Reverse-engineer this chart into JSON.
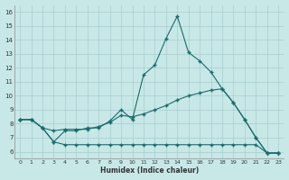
{
  "xlabel": "Humidex (Indice chaleur)",
  "background_color": "#c8e8e8",
  "grid_color": "#a8cccc",
  "line_color": "#1a6b6b",
  "xlim": [
    -0.5,
    23.5
  ],
  "ylim": [
    5.5,
    16.5
  ],
  "xticks": [
    0,
    1,
    2,
    3,
    4,
    5,
    6,
    7,
    8,
    9,
    10,
    11,
    12,
    13,
    14,
    15,
    16,
    17,
    18,
    19,
    20,
    21,
    22,
    23
  ],
  "yticks": [
    6,
    7,
    8,
    9,
    10,
    11,
    12,
    13,
    14,
    15,
    16
  ],
  "top_x": [
    0,
    1,
    2,
    3,
    4,
    5,
    6,
    7,
    8,
    9,
    10,
    11,
    12,
    13,
    14,
    15,
    16,
    17,
    18,
    19,
    20,
    21,
    22,
    23
  ],
  "top_y": [
    8.3,
    8.3,
    7.7,
    6.7,
    7.5,
    7.5,
    7.7,
    7.7,
    8.2,
    9.0,
    8.3,
    11.5,
    12.2,
    14.1,
    15.7,
    13.1,
    12.5,
    11.7,
    10.5,
    9.5,
    8.3,
    7.0,
    5.9,
    5.9
  ],
  "mid_x": [
    0,
    1,
    2,
    3,
    4,
    5,
    6,
    7,
    8,
    9,
    10,
    11,
    12,
    13,
    14,
    15,
    16,
    17,
    18,
    19,
    20,
    21,
    22,
    23
  ],
  "mid_y": [
    8.3,
    8.3,
    7.7,
    7.5,
    7.6,
    7.6,
    7.6,
    7.8,
    8.1,
    8.6,
    8.5,
    8.7,
    9.0,
    9.3,
    9.7,
    10.0,
    10.2,
    10.4,
    10.5,
    9.5,
    8.3,
    7.0,
    5.9,
    5.9
  ],
  "bot_x": [
    0,
    1,
    2,
    3,
    4,
    5,
    6,
    7,
    8,
    9,
    10,
    11,
    12,
    13,
    14,
    15,
    16,
    17,
    18,
    19,
    20,
    21,
    22,
    23
  ],
  "bot_y": [
    8.3,
    8.3,
    7.7,
    6.7,
    6.5,
    6.5,
    6.5,
    6.5,
    6.5,
    6.5,
    6.5,
    6.5,
    6.5,
    6.5,
    6.5,
    6.5,
    6.5,
    6.5,
    6.5,
    6.5,
    6.5,
    6.5,
    5.9,
    5.9
  ]
}
